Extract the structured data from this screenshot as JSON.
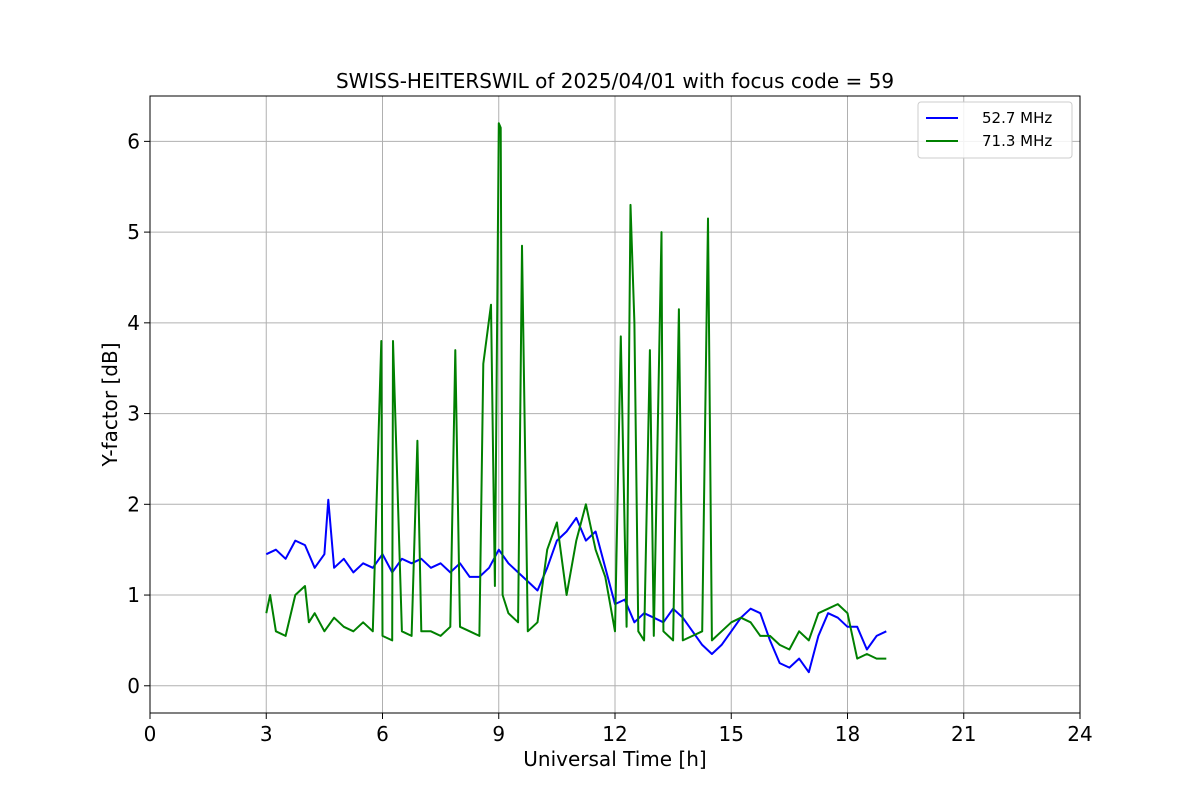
{
  "chart_data": {
    "type": "line",
    "title": "SWISS-HEITERSWIL of 2025/04/01 with focus code = 59",
    "xlabel": "Universal Time [h]",
    "ylabel": "Y-factor [dB]",
    "xlim": [
      0,
      24
    ],
    "ylim": [
      -0.3,
      6.5
    ],
    "xticks": [
      0,
      3,
      6,
      9,
      12,
      15,
      18,
      21,
      24
    ],
    "yticks": [
      0,
      1,
      2,
      3,
      4,
      5,
      6
    ],
    "grid": true,
    "legend_position": "top-right",
    "series": [
      {
        "name": "52.7 MHz",
        "color": "#0000ff",
        "x": [
          3.0,
          3.25,
          3.5,
          3.75,
          4.0,
          4.25,
          4.5,
          4.6,
          4.75,
          5.0,
          5.25,
          5.5,
          5.75,
          6.0,
          6.25,
          6.5,
          6.75,
          7.0,
          7.25,
          7.5,
          7.75,
          8.0,
          8.25,
          8.5,
          8.75,
          9.0,
          9.25,
          9.5,
          9.75,
          10.0,
          10.25,
          10.5,
          10.75,
          11.0,
          11.25,
          11.5,
          11.75,
          12.0,
          12.25,
          12.5,
          12.75,
          13.0,
          13.25,
          13.5,
          13.75,
          14.0,
          14.25,
          14.5,
          14.75,
          15.0,
          15.25,
          15.5,
          15.75,
          16.0,
          16.25,
          16.5,
          16.75,
          17.0,
          17.25,
          17.5,
          17.75,
          18.0,
          18.25,
          18.5,
          18.75,
          19.0
        ],
        "y": [
          1.45,
          1.5,
          1.4,
          1.6,
          1.55,
          1.3,
          1.45,
          2.05,
          1.3,
          1.4,
          1.25,
          1.35,
          1.3,
          1.45,
          1.25,
          1.4,
          1.35,
          1.4,
          1.3,
          1.35,
          1.25,
          1.35,
          1.2,
          1.2,
          1.3,
          1.5,
          1.35,
          1.25,
          1.15,
          1.05,
          1.3,
          1.6,
          1.7,
          1.85,
          1.6,
          1.7,
          1.3,
          0.9,
          0.95,
          0.7,
          0.8,
          0.75,
          0.7,
          0.85,
          0.75,
          0.6,
          0.45,
          0.35,
          0.45,
          0.6,
          0.75,
          0.85,
          0.8,
          0.5,
          0.25,
          0.2,
          0.3,
          0.15,
          0.55,
          0.8,
          0.75,
          0.65,
          0.65,
          0.4,
          0.55,
          0.6
        ]
      },
      {
        "name": "71.3 MHz",
        "color": "#008000",
        "x": [
          3.0,
          3.1,
          3.25,
          3.5,
          3.75,
          4.0,
          4.1,
          4.25,
          4.5,
          4.75,
          5.0,
          5.25,
          5.5,
          5.75,
          5.97,
          6.0,
          6.25,
          6.27,
          6.5,
          6.75,
          6.9,
          7.0,
          7.25,
          7.5,
          7.75,
          7.88,
          8.0,
          8.25,
          8.5,
          8.6,
          8.8,
          8.9,
          9.0,
          9.05,
          9.1,
          9.25,
          9.5,
          9.6,
          9.75,
          10.0,
          10.25,
          10.5,
          10.75,
          11.0,
          11.25,
          11.5,
          11.75,
          12.0,
          12.15,
          12.3,
          12.4,
          12.5,
          12.6,
          12.75,
          12.9,
          13.0,
          13.2,
          13.25,
          13.5,
          13.65,
          13.75,
          14.0,
          14.25,
          14.4,
          14.5,
          14.75,
          15.0,
          15.25,
          15.5,
          15.75,
          16.0,
          16.25,
          16.5,
          16.75,
          17.0,
          17.25,
          17.5,
          17.75,
          18.0,
          18.25,
          18.5,
          18.75,
          19.0
        ],
        "y": [
          0.8,
          1.0,
          0.6,
          0.55,
          1.0,
          1.1,
          0.7,
          0.8,
          0.6,
          0.75,
          0.65,
          0.6,
          0.7,
          0.6,
          3.8,
          0.55,
          0.5,
          3.8,
          0.6,
          0.55,
          2.7,
          0.6,
          0.6,
          0.55,
          0.65,
          3.7,
          0.65,
          0.6,
          0.55,
          3.55,
          4.2,
          1.1,
          6.2,
          6.15,
          1.0,
          0.8,
          0.7,
          4.85,
          0.6,
          0.7,
          1.5,
          1.8,
          1.0,
          1.6,
          2.0,
          1.5,
          1.2,
          0.6,
          3.85,
          0.65,
          5.3,
          4.0,
          0.6,
          0.5,
          3.7,
          0.55,
          5.0,
          0.6,
          0.5,
          4.15,
          0.5,
          0.55,
          0.6,
          5.15,
          0.5,
          0.6,
          0.7,
          0.75,
          0.7,
          0.55,
          0.55,
          0.45,
          0.4,
          0.6,
          0.5,
          0.8,
          0.85,
          0.9,
          0.8,
          0.3,
          0.35,
          0.3,
          0.3
        ]
      }
    ]
  }
}
